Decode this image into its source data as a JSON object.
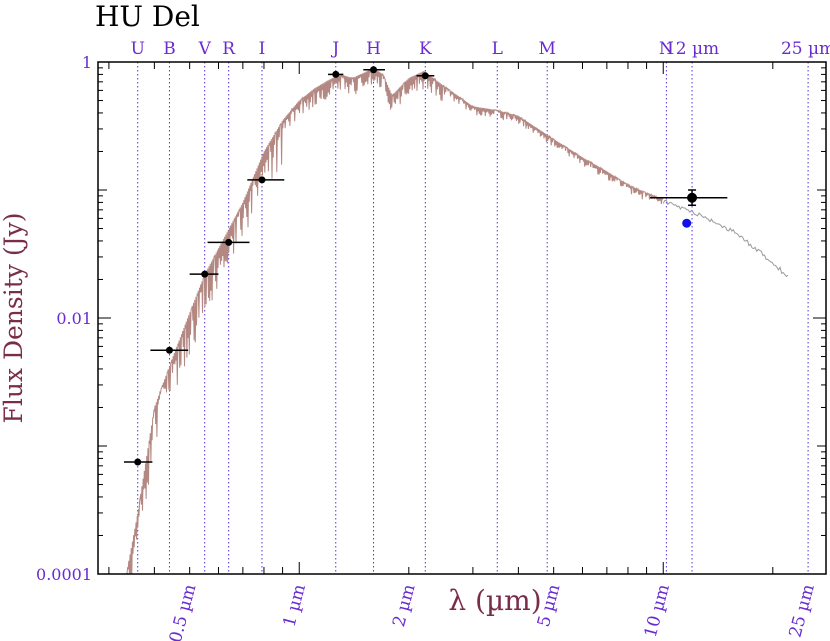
{
  "chart_data": {
    "type": "scatter",
    "title": "HU Del",
    "xlabel": "λ (µm)",
    "ylabel": "Flux Density (Jy)",
    "x_scale": "log",
    "y_scale": "log",
    "xlim": [
      0.28,
      28
    ],
    "ylim": [
      0.0001,
      1
    ],
    "y_ticks": [
      {
        "value": 0.0001,
        "label": "0.0001"
      },
      {
        "value": 0.01,
        "label": "0.01"
      },
      {
        "value": 1,
        "label": "1"
      }
    ],
    "x_tick_labels": [
      {
        "value": 0.5,
        "label": "0.5 µm"
      },
      {
        "value": 1,
        "label": "1 µm"
      },
      {
        "value": 2,
        "label": "2 µm"
      },
      {
        "value": 5,
        "label": "5 µm"
      },
      {
        "value": 10,
        "label": "10 µm"
      },
      {
        "value": 25,
        "label": "25 µm"
      }
    ],
    "bands": [
      {
        "name": "U",
        "wavelength": 0.36
      },
      {
        "name": "B",
        "wavelength": 0.44
      },
      {
        "name": "V",
        "wavelength": 0.55
      },
      {
        "name": "R",
        "wavelength": 0.64
      },
      {
        "name": "I",
        "wavelength": 0.79
      },
      {
        "name": "J",
        "wavelength": 1.26
      },
      {
        "name": "H",
        "wavelength": 1.6
      },
      {
        "name": "K",
        "wavelength": 2.22
      },
      {
        "name": "L",
        "wavelength": 3.5
      },
      {
        "name": "M",
        "wavelength": 4.8
      },
      {
        "name": "N",
        "wavelength": 10.2
      },
      {
        "name": "12 µm",
        "wavelength": 12
      },
      {
        "name": "25 µm",
        "wavelength": 25
      }
    ],
    "photometry": [
      {
        "x": 0.36,
        "y": 0.00075,
        "xerr": [
          0.33,
          0.395
        ]
      },
      {
        "x": 0.44,
        "y": 0.0056,
        "xerr": [
          0.39,
          0.495
        ]
      },
      {
        "x": 0.55,
        "y": 0.022,
        "xerr": [
          0.5,
          0.6
        ]
      },
      {
        "x": 0.64,
        "y": 0.039,
        "xerr": [
          0.56,
          0.73
        ]
      },
      {
        "x": 0.79,
        "y": 0.12,
        "xerr": [
          0.72,
          0.91
        ]
      },
      {
        "x": 1.26,
        "y": 0.8,
        "xerr": [
          1.2,
          1.32
        ]
      },
      {
        "x": 1.6,
        "y": 0.87,
        "xerr": [
          1.5,
          1.72
        ]
      },
      {
        "x": 2.22,
        "y": 0.78,
        "xerr": [
          2.1,
          2.35
        ]
      },
      {
        "x": 12,
        "y": 0.087,
        "xerr": [
          9.2,
          15.0
        ],
        "yerr": [
          0.076,
          0.1
        ],
        "size": "large"
      }
    ],
    "extra_point": {
      "x": 11.6,
      "y": 0.055
    },
    "model_spectrum": {
      "x": [
        0.33,
        0.36,
        0.4,
        0.45,
        0.5,
        0.55,
        0.6,
        0.7,
        0.8,
        0.9,
        1.0,
        1.1,
        1.2,
        1.3,
        1.4,
        1.5,
        1.6,
        1.7,
        1.8,
        2.0,
        2.2,
        2.5,
        3.0,
        3.5,
        4.0,
        5.0,
        6.0,
        7.0,
        8.0,
        9.0,
        10.0
      ],
      "y": [
        8e-05,
        0.0003,
        0.002,
        0.005,
        0.011,
        0.022,
        0.035,
        0.08,
        0.2,
        0.35,
        0.5,
        0.62,
        0.72,
        0.8,
        0.75,
        0.82,
        0.9,
        0.8,
        0.55,
        0.75,
        0.85,
        0.65,
        0.45,
        0.42,
        0.38,
        0.25,
        0.18,
        0.14,
        0.11,
        0.095,
        0.085
      ]
    },
    "extension_spectrum": {
      "x": [
        10.0,
        12.0,
        14.0,
        16.0,
        18.0,
        20.0,
        22.0
      ],
      "y": [
        0.085,
        0.07,
        0.058,
        0.047,
        0.036,
        0.028,
        0.022
      ]
    },
    "colors": {
      "axis": "#000000",
      "band_lines": "#5a30c8",
      "band_labels": "#6a2cd0",
      "tick_labels": "#6a2cd0",
      "ylabel": "#7a2d4a",
      "xlabel": "#7a2d4a",
      "spectrum": "#b38882",
      "extension": "#9a9a9a",
      "points": "#000000",
      "extra_point": "#1010ee"
    }
  }
}
